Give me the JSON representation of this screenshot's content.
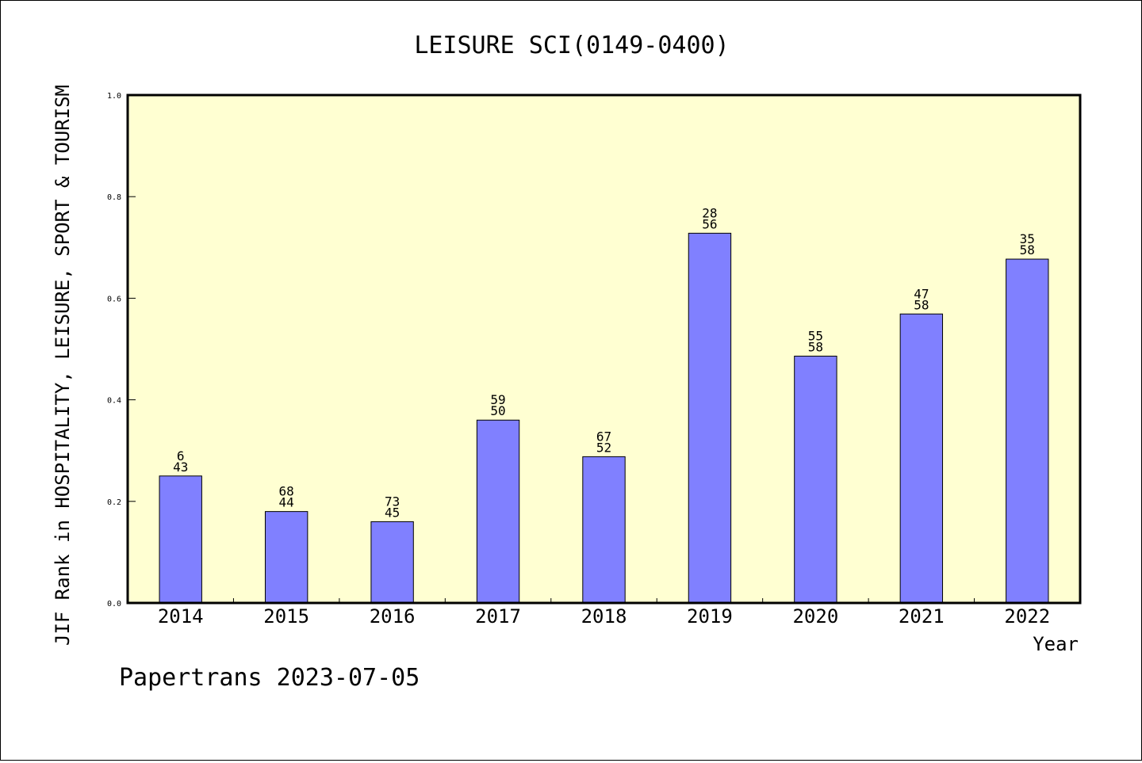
{
  "footer": "Papertrans 2023-07-05",
  "colors": {
    "plot_background": "#ffffd2",
    "bar_fill": "#8080ff",
    "bar_stroke": "#000000"
  },
  "chart_data": {
    "type": "bar",
    "title": "LEISURE SCI(0149-0400)",
    "xlabel": "Year",
    "ylabel": "JIF Rank in HOSPITALITY, LEISURE, SPORT & TOURISM",
    "ylim": [
      0,
      1.0
    ],
    "yticks": [
      "0.0",
      "0.2",
      "0.4",
      "0.6",
      "0.8",
      "1.0"
    ],
    "grid": false,
    "categories": [
      "2014",
      "2015",
      "2016",
      "2017",
      "2018",
      "2019",
      "2020",
      "2021",
      "2022"
    ],
    "values": [
      0.25,
      0.18,
      0.16,
      0.36,
      0.288,
      0.728,
      0.486,
      0.569,
      0.677
    ],
    "labels_top": [
      "6",
      "68",
      "73",
      "59",
      "67",
      "28",
      "55",
      "47",
      "35"
    ],
    "labels_bottom": [
      "43",
      "44",
      "45",
      "50",
      "52",
      "56",
      "58",
      "58",
      "58"
    ]
  }
}
